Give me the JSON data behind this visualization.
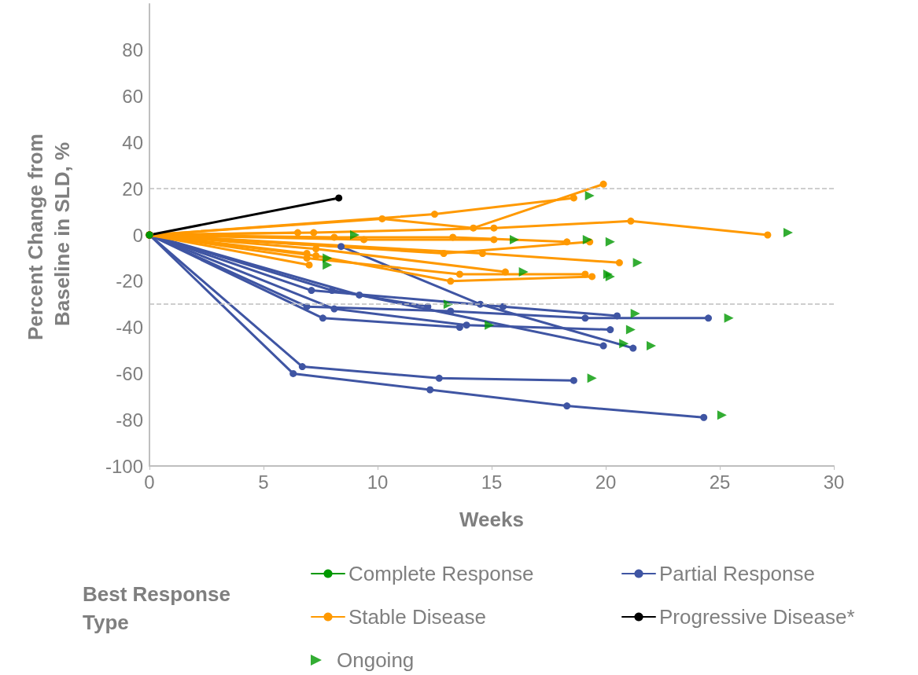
{
  "chart_data": {
    "type": "line",
    "xlabel": "Weeks",
    "ylabel": "Percent Change from Baseline in SLD, %",
    "legend_title": "Best Response Type",
    "xlim": [
      0,
      30
    ],
    "xticks": [
      0,
      5,
      10,
      15,
      20,
      25,
      30
    ],
    "ylim": [
      -100,
      100
    ],
    "yticks": [
      -100,
      -80,
      -60,
      -40,
      -20,
      0,
      20,
      40,
      60,
      80
    ],
    "grid": false,
    "legend": "bottom",
    "marker": "circle",
    "line_style": "solid",
    "ref_lines": [
      {
        "axis": "y",
        "value": 20,
        "label": null,
        "color": "#bfbfbf",
        "line_style": "dashed"
      },
      {
        "axis": "y",
        "value": -30,
        "label": null,
        "color": "#bfbfbf",
        "line_style": "dashed"
      }
    ],
    "series": [
      {
        "name": "Complete Response",
        "color": "#009900",
        "x": [
          0
        ],
        "values": [
          0
        ]
      },
      {
        "name": "Partial Response",
        "color": "#3f55a3",
        "x": [
          0,
          8.4,
          14.5,
          21.2
        ],
        "values": [
          0,
          -5,
          -30,
          -49
        ]
      },
      {
        "color": "#3f55a3",
        "x": [
          0,
          6.7,
          12.7,
          18.6
        ],
        "values": [
          0,
          -57,
          -62,
          -63
        ]
      },
      {
        "color": "#3f55a3",
        "x": [
          0,
          6.3,
          12.3,
          18.3,
          24.3
        ],
        "values": [
          0,
          -60,
          -67,
          -74,
          -79
        ]
      },
      {
        "color": "#3f55a3",
        "x": [
          0,
          7.1,
          15.5,
          20.5
        ],
        "values": [
          0,
          -24,
          -31,
          -35
        ]
      },
      {
        "color": "#3f55a3",
        "x": [
          0,
          8.0,
          12.2
        ],
        "values": [
          0,
          -24,
          -31
        ]
      },
      {
        "color": "#3f55a3",
        "x": [
          0,
          9.2,
          19.9
        ],
        "values": [
          0,
          -26,
          -48
        ]
      },
      {
        "color": "#3f55a3",
        "x": [
          0,
          6.9,
          13.2,
          19.1,
          24.5
        ],
        "values": [
          0,
          -31,
          -33,
          -36,
          -36
        ]
      },
      {
        "color": "#3f55a3",
        "x": [
          0,
          8.1,
          13.9,
          20.2
        ],
        "values": [
          0,
          -32,
          -39,
          -41
        ]
      },
      {
        "color": "#3f55a3",
        "x": [
          0,
          7.6,
          13.6
        ],
        "values": [
          0,
          -36,
          -40
        ]
      },
      {
        "name": "Stable Disease",
        "color": "#ff9900",
        "x": [
          0,
          12.5,
          18.6
        ],
        "values": [
          0,
          9,
          16
        ]
      },
      {
        "color": "#ff9900",
        "x": [
          0,
          10.2,
          14.2,
          19.9
        ],
        "values": [
          0,
          7,
          3,
          22
        ]
      },
      {
        "color": "#ff9900",
        "x": [
          0,
          7.2,
          15.1,
          21.1,
          27.1
        ],
        "values": [
          0,
          1,
          3,
          6,
          0
        ]
      },
      {
        "color": "#ff9900",
        "x": [
          0,
          6.5
        ],
        "values": [
          0,
          1
        ]
      },
      {
        "color": "#ff9900",
        "x": [
          0,
          8.1,
          13.3,
          18.3
        ],
        "values": [
          0,
          -1,
          -1,
          -3
        ]
      },
      {
        "color": "#ff9900",
        "x": [
          0,
          9.4,
          15.1
        ],
        "values": [
          0,
          -2,
          -2
        ]
      },
      {
        "color": "#ff9900",
        "x": [
          0,
          12.9,
          19.3
        ],
        "values": [
          0,
          -8,
          -3
        ]
      },
      {
        "color": "#ff9900",
        "x": [
          0,
          14.6,
          20.6
        ],
        "values": [
          0,
          -8,
          -12
        ]
      },
      {
        "color": "#ff9900",
        "x": [
          0,
          7.3,
          15.6
        ],
        "values": [
          0,
          -6,
          -16
        ]
      },
      {
        "color": "#ff9900",
        "x": [
          0,
          6.9,
          13.6,
          19.1
        ],
        "values": [
          0,
          -10,
          -17,
          -17
        ]
      },
      {
        "color": "#ff9900",
        "x": [
          0,
          7.3,
          13.2,
          19.4
        ],
        "values": [
          0,
          -9,
          -20,
          -18
        ]
      },
      {
        "color": "#ff9900",
        "x": [
          0,
          7.0
        ],
        "values": [
          0,
          -13
        ]
      },
      {
        "color": "#ff9900",
        "x": [
          0,
          6.9
        ],
        "values": [
          0,
          -8
        ]
      },
      {
        "name": "Progressive Disease*",
        "color": "#000000",
        "x": [
          0,
          8.3
        ],
        "values": [
          0,
          16
        ]
      },
      {
        "name": "Ongoing",
        "type": "scatter",
        "marker": "triangle",
        "color": "#009900",
        "x": [
          22.0,
          19.4,
          25.1,
          21.3,
          13.1,
          20.8,
          25.4,
          21.1,
          14.9,
          19.3,
          28.0,
          9.0,
          19.2,
          16.0,
          20.2,
          21.4,
          16.4,
          20.1,
          20.2,
          7.8,
          7.8
        ],
        "values": [
          -48,
          -62,
          -78,
          -34,
          -30,
          -47,
          -36,
          -41,
          -39,
          17,
          1,
          0,
          -2,
          -2,
          -3,
          -12,
          -16,
          -17,
          -18,
          -13,
          -10
        ]
      }
    ]
  }
}
